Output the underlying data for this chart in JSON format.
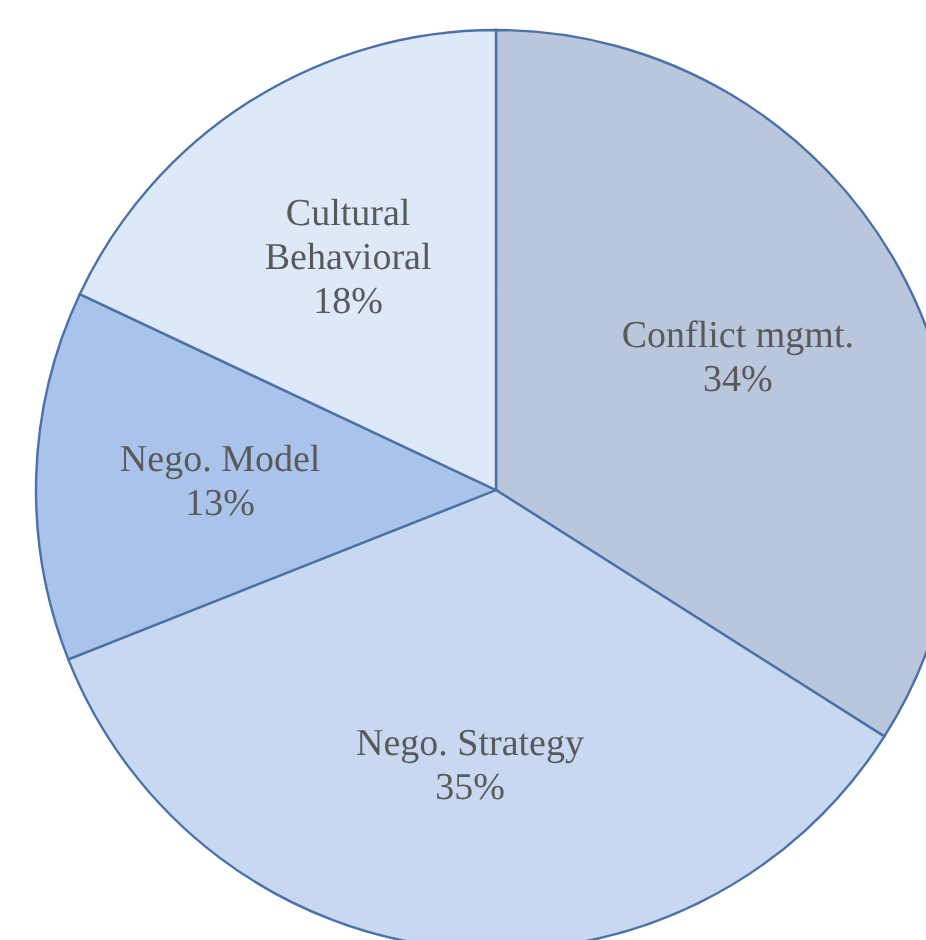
{
  "chart_data": {
    "type": "pie",
    "categories": [
      "Conflict mgmt.",
      "Nego. Strategy",
      "Nego. Model",
      "Cultural Behavioral"
    ],
    "values": [
      34,
      35,
      13,
      18
    ],
    "value_labels": [
      "34%",
      "35%",
      "13%",
      "18%"
    ],
    "colors": [
      "#b9c6dc",
      "#c8d8f1",
      "#a9c3ea",
      "#dde8f8"
    ],
    "legend": false
  }
}
